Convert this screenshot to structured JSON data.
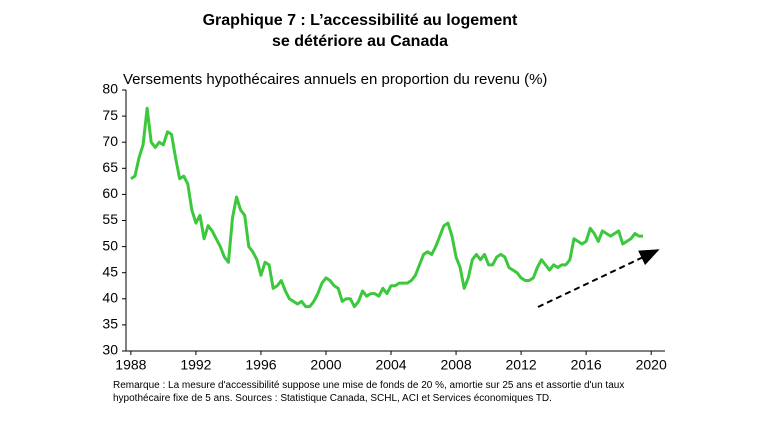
{
  "chart_data": {
    "type": "line",
    "title": "Graphique 7 : L’accessibilité  au logement se détériore au Canada",
    "y_label": "Versements hypothécaires annuels en proportion du revenu (%)",
    "note": "Remarque : La mesure d'accessibilité suppose une mise de fonds de 20 %, amortie sur 25 ans et assortie d'un taux hypothécaire fixe de 5 ans. Sources : Statistique Canada, SCHL, ACI et Services économiques TD.",
    "x": [
      1988,
      1988.25,
      1988.5,
      1988.75,
      1989,
      1989.25,
      1989.5,
      1989.75,
      1990,
      1990.25,
      1990.5,
      1990.75,
      1991,
      1991.25,
      1991.5,
      1991.75,
      1992,
      1992.25,
      1992.5,
      1992.75,
      1993,
      1993.25,
      1993.5,
      1993.75,
      1994,
      1994.25,
      1994.5,
      1994.75,
      1995,
      1995.25,
      1995.5,
      1995.75,
      1996,
      1996.25,
      1996.5,
      1996.75,
      1997,
      1997.25,
      1997.5,
      1997.75,
      1998,
      1998.25,
      1998.5,
      1998.75,
      1999,
      1999.25,
      1999.5,
      1999.75,
      2000,
      2000.25,
      2000.5,
      2000.75,
      2001,
      2001.25,
      2001.5,
      2001.75,
      2002,
      2002.25,
      2002.5,
      2002.75,
      2003,
      2003.25,
      2003.5,
      2003.75,
      2004,
      2004.25,
      2004.5,
      2004.75,
      2005,
      2005.25,
      2005.5,
      2005.75,
      2006,
      2006.25,
      2006.5,
      2006.75,
      2007,
      2007.25,
      2007.5,
      2007.75,
      2008,
      2008.25,
      2008.5,
      2008.75,
      2009,
      2009.25,
      2009.5,
      2009.75,
      2010,
      2010.25,
      2010.5,
      2010.75,
      2011,
      2011.25,
      2011.5,
      2011.75,
      2012,
      2012.25,
      2012.5,
      2012.75,
      2013,
      2013.25,
      2013.5,
      2013.75,
      2014,
      2014.25,
      2014.5,
      2014.75,
      2015,
      2015.25,
      2015.5,
      2015.75,
      2016,
      2016.25,
      2016.5,
      2016.75,
      2017,
      2017.25,
      2017.5,
      2017.75,
      2018,
      2018.25,
      2018.5,
      2018.75,
      2019,
      2019.25,
      2019.5
    ],
    "series": [
      {
        "color": "#3cc83c",
        "values": [
          63,
          63.5,
          67,
          69.5,
          76.5,
          70,
          69,
          70,
          69.5,
          72,
          71.5,
          67,
          63,
          63.5,
          62,
          57,
          54.5,
          56,
          51.5,
          54,
          53,
          51.5,
          50,
          48,
          47,
          55.5,
          59.5,
          57,
          56,
          50,
          49,
          47.5,
          44.5,
          47,
          46.5,
          42,
          42.5,
          43.5,
          41.5,
          40,
          39.5,
          39,
          39.5,
          38.5,
          38.5,
          39.5,
          41,
          43,
          44,
          43.5,
          42.5,
          42,
          39.5,
          40,
          40,
          38.5,
          39.5,
          41.5,
          40.5,
          41,
          41,
          40.5,
          42,
          41,
          42.5,
          42.5,
          43,
          43,
          43,
          43.5,
          44.5,
          46.5,
          48.5,
          49,
          48.5,
          50,
          52,
          54,
          54.5,
          52,
          48,
          46,
          42,
          44,
          47.5,
          48.5,
          47.5,
          48.5,
          46.5,
          46.5,
          48,
          48.5,
          48,
          46,
          45.5,
          45,
          44,
          43.5,
          43.5,
          44,
          46,
          47.5,
          46.5,
          45.5,
          46.5,
          46,
          46.5,
          46.5,
          47.5,
          51.5,
          51,
          50.5,
          51,
          53.5,
          52.5,
          51,
          53,
          52.5,
          52,
          52.5,
          53,
          50.5,
          51,
          51.5,
          52.5,
          52,
          52
        ]
      }
    ],
    "xlim": [
      1987.7,
      2020.85
    ],
    "xticks": [
      1988,
      1992,
      1996,
      2000,
      2004,
      2008,
      2012,
      2016,
      2020
    ],
    "ylim": [
      30,
      80
    ],
    "yticks": [
      30,
      35,
      40,
      45,
      50,
      55,
      60,
      65,
      70,
      75,
      80
    ],
    "grid": false
  }
}
